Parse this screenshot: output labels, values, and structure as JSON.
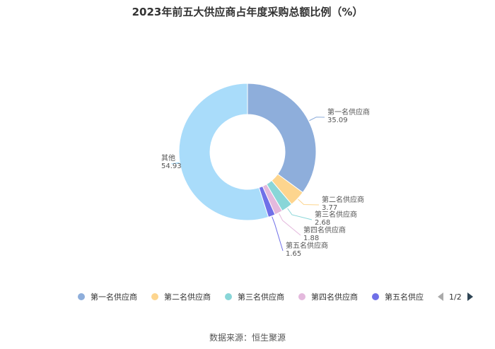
{
  "chart_data": {
    "type": "pie",
    "title": "2023年前五大供应商占年度采购总额比例（%）",
    "categories": [
      "第一名供应商",
      "第二名供应商",
      "第三名供应商",
      "第四名供应商",
      "第五名供应商",
      "其他"
    ],
    "values": [
      35.09,
      3.77,
      2.68,
      1.88,
      1.65,
      54.93
    ],
    "value_labels": [
      "35.09",
      "3.77",
      "2.68",
      "1.88",
      "1.65",
      "54.93"
    ],
    "colors": [
      "#8eaedb",
      "#fdd58e",
      "#89d6d8",
      "#e4b9dd",
      "#7070e8",
      "#a9dcfa"
    ],
    "legend_placement": "bottom"
  },
  "legend": {
    "items": [
      "第一名供应商",
      "第二名供应商",
      "第三名供应商",
      "第四名供应商",
      "第五名供应商"
    ],
    "page_indicator": "1/2"
  },
  "source": "数据来源：恒生聚源"
}
